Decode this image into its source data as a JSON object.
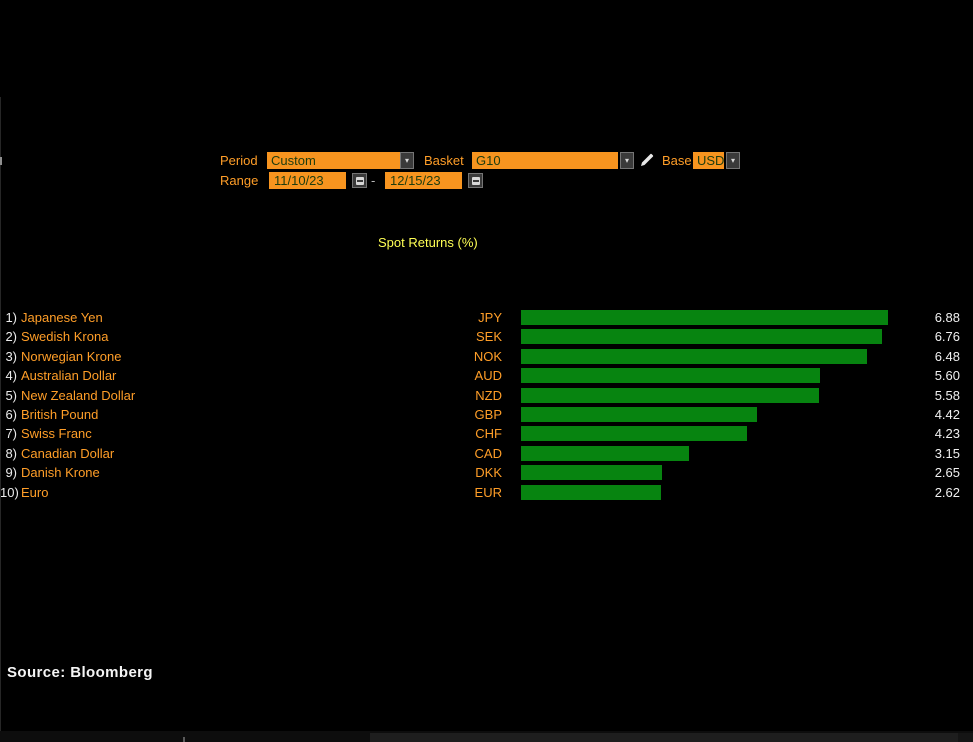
{
  "controls": {
    "period": {
      "label": "Period",
      "value": "Custom"
    },
    "basket": {
      "label": "Basket",
      "value": "G10"
    },
    "base": {
      "label": "Base",
      "value": "USD"
    },
    "range": {
      "label": "Range",
      "start": "11/10/23",
      "separator": "-",
      "end": "12/15/23"
    }
  },
  "chart_data": {
    "type": "bar",
    "orientation": "horizontal",
    "title": "Spot Returns (%)",
    "row_numbers": [
      "1)",
      "2)",
      "3)",
      "4)",
      "5)",
      "6)",
      "7)",
      "8)",
      "9)",
      "10)"
    ],
    "categories": [
      "Japanese Yen",
      "Swedish Krona",
      "Norwegian Krone",
      "Australian Dollar",
      "New Zealand Dollar",
      "British Pound",
      "Swiss Franc",
      "Canadian Dollar",
      "Danish Krone",
      "Euro"
    ],
    "codes": [
      "JPY",
      "SEK",
      "NOK",
      "AUD",
      "NZD",
      "GBP",
      "CHF",
      "CAD",
      "DKK",
      "EUR"
    ],
    "values": [
      6.88,
      6.76,
      6.48,
      5.6,
      5.58,
      4.42,
      4.23,
      3.15,
      2.65,
      2.62
    ],
    "value_labels": [
      "6.88",
      "6.76",
      "6.48",
      "5.60",
      "5.58",
      "4.42",
      "4.23",
      "3.15",
      "2.65",
      "2.62"
    ],
    "xlim": [
      0,
      6.88
    ],
    "grid": false,
    "legend": "none",
    "bar_color": "#078410"
  },
  "footer": {
    "source": "Source: Bloomberg"
  },
  "icons": {
    "dropdown_arrow": "▾",
    "pencil": "pencil-icon",
    "calendar": "calendar-icon"
  },
  "colors": {
    "background": "#000000",
    "amber_field": "#f7941f",
    "amber_text": "#ff9e28",
    "field_text": "#1e3c0e",
    "bar_green": "#078410",
    "title_yellow": "#ffff54",
    "value_text": "#f0f0f0"
  }
}
